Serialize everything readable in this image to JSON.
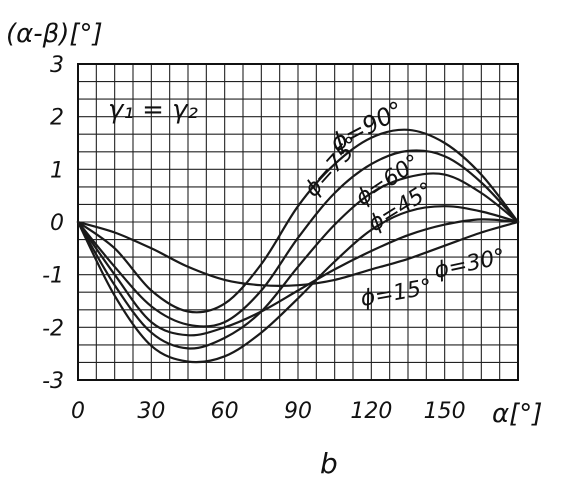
{
  "chart_data": {
    "type": "line",
    "ylabel": "(α-β)[°]",
    "xlabel": "α[°]",
    "subplot_label": "b",
    "annotation": "γ₁ = γ₂",
    "xlim": [
      0,
      180
    ],
    "ylim": [
      -3,
      3
    ],
    "grid": true,
    "x_ticks": [
      "0",
      "30",
      "60",
      "90",
      "120",
      "150"
    ],
    "y_ticks": [
      "3",
      "2",
      "1",
      "0",
      "-1",
      "-2",
      "-3"
    ],
    "x": [
      0,
      15,
      30,
      45,
      60,
      75,
      90,
      105,
      120,
      135,
      150,
      165,
      180
    ],
    "series": [
      {
        "name": "ϕ=90°",
        "values": [
          0,
          -0.5,
          -1.3,
          -1.7,
          -1.55,
          -0.8,
          0.3,
          1.1,
          1.6,
          1.75,
          1.5,
          0.9,
          0
        ]
      },
      {
        "name": "ϕ=75°",
        "values": [
          0,
          -0.85,
          -1.6,
          -1.95,
          -1.9,
          -1.3,
          -0.3,
          0.55,
          1.1,
          1.35,
          1.25,
          0.75,
          0
        ]
      },
      {
        "name": "ϕ=60°",
        "values": [
          0,
          -1.2,
          -2.1,
          -2.4,
          -2.2,
          -1.7,
          -0.85,
          -0.05,
          0.55,
          0.85,
          0.9,
          0.55,
          0
        ]
      },
      {
        "name": "ϕ=45°",
        "values": [
          0,
          -1.4,
          -2.35,
          -2.65,
          -2.55,
          -2.1,
          -1.45,
          -0.75,
          -0.15,
          0.2,
          0.3,
          0.2,
          0
        ]
      },
      {
        "name": "ϕ=30°",
        "values": [
          0,
          -1.0,
          -1.9,
          -2.15,
          -2.0,
          -1.7,
          -1.3,
          -0.9,
          -0.55,
          -0.25,
          -0.05,
          0.05,
          0
        ]
      },
      {
        "name": "ϕ=15°",
        "values": [
          0,
          -0.2,
          -0.5,
          -0.85,
          -1.1,
          -1.2,
          -1.2,
          -1.1,
          -0.9,
          -0.7,
          -0.45,
          -0.2,
          0
        ]
      }
    ]
  }
}
